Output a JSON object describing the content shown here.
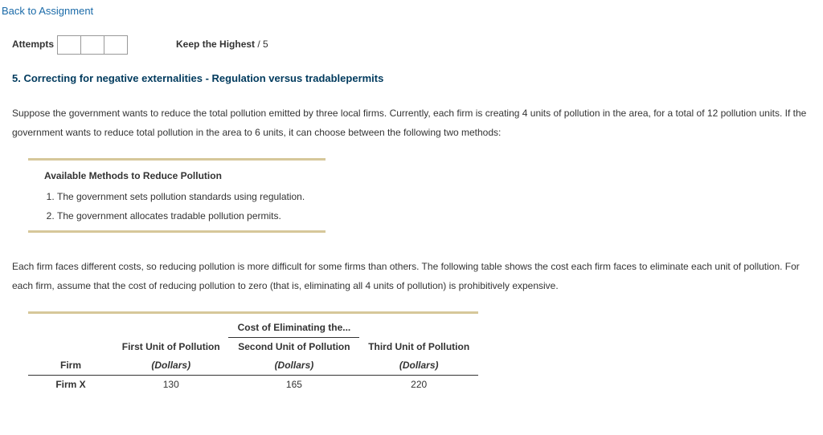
{
  "nav": {
    "back_label": "Back to Assignment"
  },
  "attempts": {
    "label": "Attempts",
    "keep_label": "Keep the Highest",
    "keep_sep": " / ",
    "keep_max": "5"
  },
  "question": {
    "title": "5. Correcting for negative externalities - Regulation versus tradablepermits",
    "intro": "Suppose the government wants to reduce the total pollution emitted by three local firms. Currently, each firm is creating 4 units of pollution in the area, for a total of 12 pollution units. If the government wants to reduce total pollution in the area to 6 units, it can choose between the following two methods:",
    "methods_heading": "Available Methods to Reduce Pollution",
    "methods": [
      "The government sets pollution standards using regulation.",
      "The government allocates tradable pollution permits."
    ],
    "body2": "Each firm faces different costs, so reducing pollution is more difficult for some firms than others. The following table shows the cost each firm faces to eliminate each unit of pollution. For each firm, assume that the cost of reducing pollution to zero (that is, eliminating all 4 units of pollution) is prohibitively expensive."
  },
  "cost_table": {
    "spanner": "Cost of Eliminating the...",
    "firm_header": "Firm",
    "columns": [
      {
        "title": "First Unit of Pollution",
        "unit": "(Dollars)"
      },
      {
        "title": "Second Unit of Pollution",
        "unit": "(Dollars)"
      },
      {
        "title": "Third Unit of Pollution",
        "unit": "(Dollars)"
      }
    ],
    "rows": [
      {
        "firm": "Firm X",
        "v1": "130",
        "v2": "165",
        "v3": "220"
      }
    ]
  },
  "colors": {
    "title": "#003a5d",
    "link": "#1a6aa8",
    "tan_rule": "#d6c79a"
  }
}
